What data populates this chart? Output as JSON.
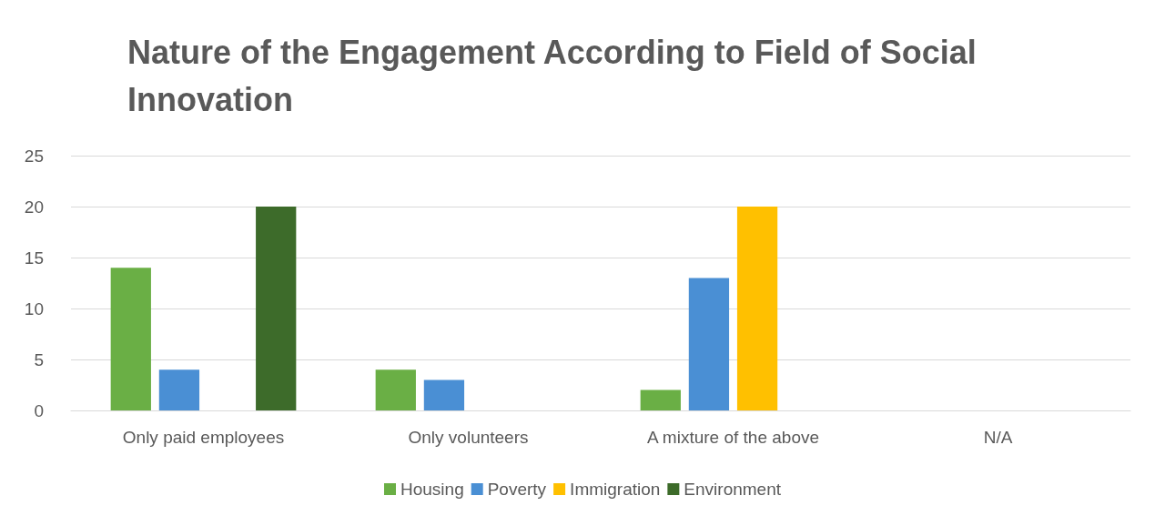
{
  "chart_data": {
    "type": "bar",
    "title": "Nature of the Engagement According to Field of Social Innovation",
    "categories": [
      "Only paid employees",
      "Only volunteers",
      "A mixture of the above",
      "N/A"
    ],
    "series": [
      {
        "name": "Housing",
        "color": "#6aaf45",
        "values": [
          14,
          4,
          2,
          0
        ]
      },
      {
        "name": "Poverty",
        "color": "#4a8fd4",
        "values": [
          4,
          3,
          13,
          0
        ]
      },
      {
        "name": "Immigration",
        "color": "#ffc000",
        "values": [
          0,
          0,
          20,
          0
        ]
      },
      {
        "name": "Environment",
        "color": "#3d6b2a",
        "values": [
          20,
          0,
          0,
          0
        ]
      }
    ],
    "ylim": [
      0,
      25
    ],
    "yticks": [
      0,
      5,
      10,
      15,
      20,
      25
    ],
    "grid": "y",
    "legend": "bottom"
  }
}
